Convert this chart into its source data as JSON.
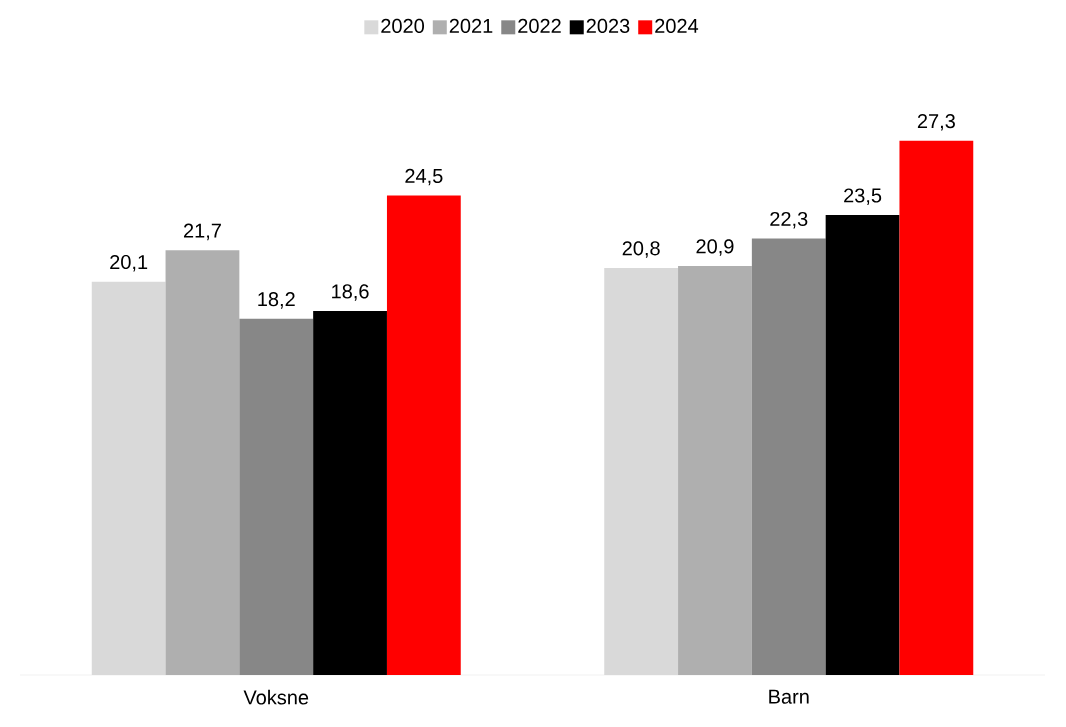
{
  "chart_data": {
    "type": "bar",
    "categories": [
      "Voksne",
      "Barn"
    ],
    "series": [
      {
        "name": "2020",
        "color": "#d9d9d9",
        "values": [
          20.1,
          20.8
        ],
        "value_labels": [
          "20,1",
          "20,8"
        ]
      },
      {
        "name": "2021",
        "color": "#afafaf",
        "values": [
          21.7,
          20.9
        ],
        "value_labels": [
          "21,7",
          "20,9"
        ]
      },
      {
        "name": "2022",
        "color": "#878787",
        "values": [
          18.2,
          22.3
        ],
        "value_labels": [
          "18,2",
          "22,3"
        ]
      },
      {
        "name": "2023",
        "color": "#000000",
        "values": [
          18.6,
          23.5
        ],
        "value_labels": [
          "18,6",
          "23,5"
        ]
      },
      {
        "name": "2024",
        "color": "#ff0000",
        "values": [
          24.5,
          27.3
        ],
        "value_labels": [
          "24,5",
          "27,3"
        ]
      }
    ],
    "legend": "top"
  }
}
